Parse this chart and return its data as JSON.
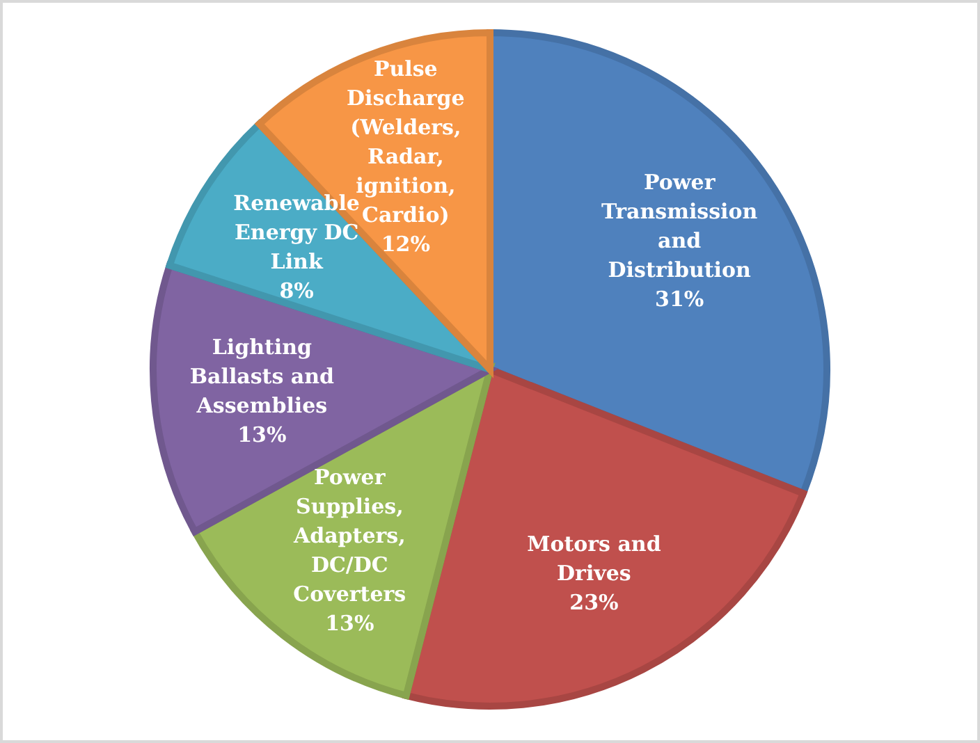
{
  "chart_data": {
    "type": "pie",
    "categories": [
      "Power Transmission and Distribution",
      "Motors and Drives",
      "Power Supplies, Adapters, DC/DC Coverters",
      "Lighting Ballasts and Assemblies",
      "Renewable Energy DC Link",
      "Pulse Discharge (Welders, Radar, ignition, Cardio)"
    ],
    "values": [
      31,
      23,
      13,
      13,
      8,
      12
    ],
    "colors": [
      "#4f81bd",
      "#c0504d",
      "#9bbb59",
      "#8064a2",
      "#4bacc6",
      "#f79646"
    ],
    "value_labels": [
      "31%",
      "23%",
      "13%",
      "13%",
      "8%",
      "12%"
    ]
  }
}
